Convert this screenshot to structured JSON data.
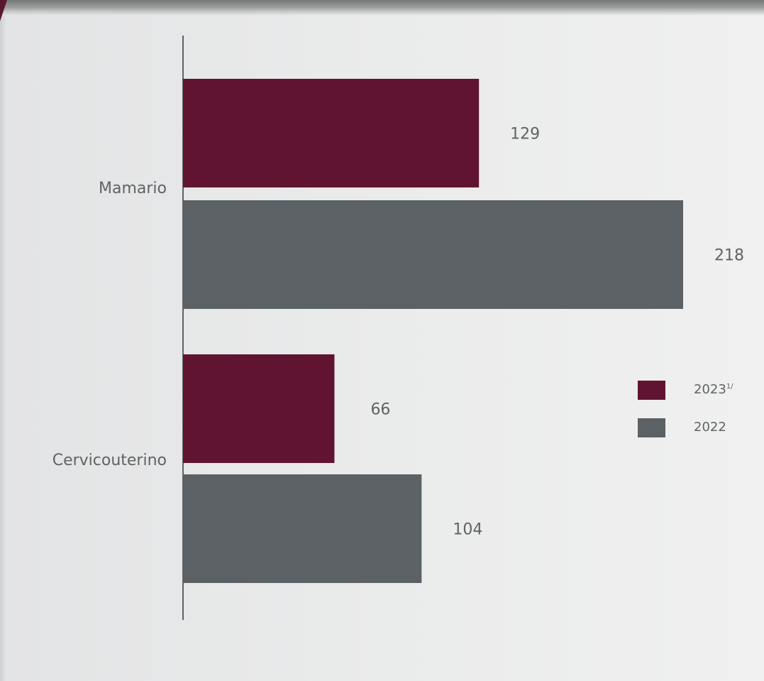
{
  "chart_data": {
    "type": "bar",
    "orientation": "horizontal",
    "categories": [
      "Mamario",
      "Cervicouterino"
    ],
    "series": [
      {
        "name": "2023",
        "name_suffix": "1/",
        "color": "#611431",
        "values": [
          129,
          66
        ]
      },
      {
        "name": "2022",
        "name_suffix": "",
        "color": "#5c6165",
        "values": [
          218,
          104
        ]
      }
    ],
    "value_labels": [
      [
        "129",
        "66"
      ],
      [
        "218",
        "104"
      ]
    ],
    "xlim": [
      0,
      218
    ],
    "grid": false,
    "legend_position": "right"
  }
}
